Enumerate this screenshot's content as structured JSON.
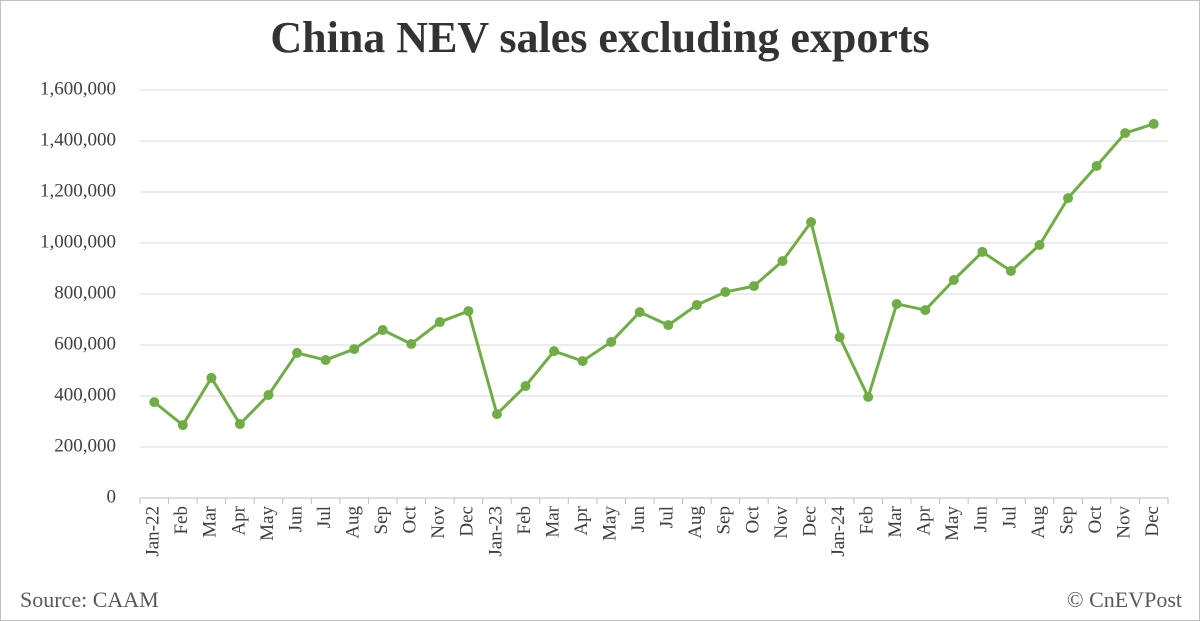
{
  "chart_data": {
    "type": "line",
    "title": "China NEV sales excluding exports",
    "source": "Source: CAAM",
    "copyright": "© CnEVPost",
    "categories": [
      "Jan-22",
      "Feb",
      "Mar",
      "Apr",
      "May",
      "Jun",
      "Jul",
      "Aug",
      "Sep",
      "Oct",
      "Nov",
      "Dec",
      "Jan-23",
      "Feb",
      "Mar",
      "Apr",
      "May",
      "Jun",
      "Jul",
      "Aug",
      "Sep",
      "Oct",
      "Nov",
      "Dec",
      "Jan-24",
      "Feb",
      "Mar",
      "Apr",
      "May",
      "Jun",
      "Jul",
      "Aug",
      "Sep",
      "Oct",
      "Nov",
      "Dec"
    ],
    "series": [
      {
        "color": "#70ad47",
        "values": [
          376000,
          286000,
          471000,
          290000,
          404000,
          569000,
          541000,
          584000,
          659000,
          604000,
          690000,
          733000,
          329000,
          439000,
          576000,
          537000,
          612000,
          729000,
          678000,
          757000,
          808000,
          831000,
          929000,
          1082000,
          631000,
          396000,
          761000,
          737000,
          855000,
          965000,
          890000,
          992000,
          1176000,
          1302000,
          1431000,
          1467000
        ]
      }
    ],
    "ylim": [
      0,
      1600000
    ],
    "yticks": [
      0,
      {
        "value": 200000,
        "label": "200,000"
      },
      {
        "value": 400000,
        "label": "400,000"
      },
      {
        "value": 600000,
        "label": "600,000"
      },
      {
        "value": 800000,
        "label": "800,000"
      },
      {
        "value": 1000000,
        "label": "1,000,000"
      },
      {
        "value": 1200000,
        "label": "1,200,000"
      },
      {
        "value": 1400000,
        "label": "1,400,000"
      },
      {
        "value": 1600000,
        "label": "1,600,000"
      }
    ],
    "grid": true
  }
}
